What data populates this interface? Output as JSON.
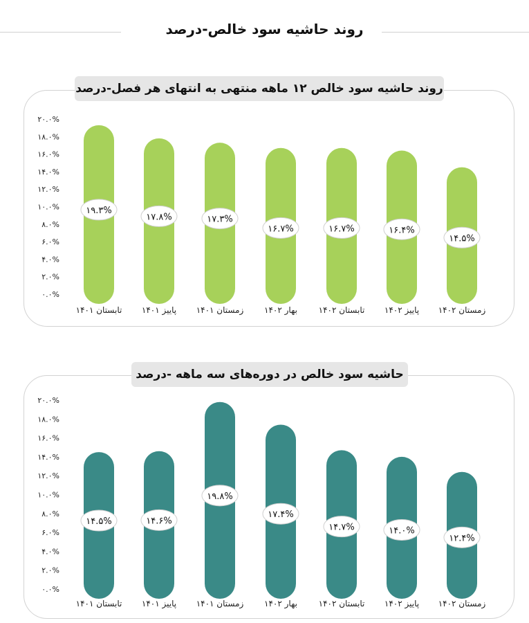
{
  "page": {
    "title": "روند حاشیه سود خالص-درصد"
  },
  "chart_data": [
    {
      "type": "bar",
      "title": "روند حاشیه سود خالص ۱۲ ماهه منتهی به انتهای هر فصل-درصد",
      "color": "#a7d15a",
      "categories": [
        "تابستان ۱۴۰۱",
        "پاییز ۱۴۰۱",
        "زمستان ۱۴۰۱",
        "بهار ۱۴۰۲",
        "تابستان ۱۴۰۲",
        "پاییز ۱۴۰۲",
        "زمستان ۱۴۰۲"
      ],
      "values": [
        19.3,
        17.8,
        17.3,
        16.7,
        16.7,
        16.4,
        14.5
      ],
      "labels": [
        "۱۹.۳%",
        "۱۷.۸%",
        "۱۷.۳%",
        "۱۶.۷%",
        "۱۶.۷%",
        "۱۶.۴%",
        "۱۴.۵%"
      ],
      "yticks": [
        "۰.۰%",
        "۲.۰%",
        "۴.۰%",
        "۶.۰%",
        "۸.۰%",
        "۱۰.۰%",
        "۱۲.۰%",
        "۱۴.۰%",
        "۱۶.۰%",
        "۱۸.۰%",
        "۲۰.۰%"
      ],
      "ylim": [
        0,
        20
      ],
      "grid": false,
      "legend": "none"
    },
    {
      "type": "bar",
      "title": "حاشیه سود خالص در دوره‌های سه ماهه -درصد",
      "color": "#3a8a87",
      "categories": [
        "تابستان ۱۴۰۱",
        "پاییز ۱۴۰۱",
        "زمستان ۱۴۰۱",
        "بهار ۱۴۰۲",
        "تابستان ۱۴۰۲",
        "پاییز ۱۴۰۲",
        "زمستان ۱۴۰۲"
      ],
      "values": [
        14.5,
        14.6,
        19.8,
        17.4,
        14.7,
        14.0,
        12.4
      ],
      "labels": [
        "۱۴.۵%",
        "۱۴.۶%",
        "۱۹.۸%",
        "۱۷.۴%",
        "۱۴.۷%",
        "۱۴.۰%",
        "۱۲.۴%"
      ],
      "yticks": [
        "۰.۰%",
        "۲.۰%",
        "۴.۰%",
        "۶.۰%",
        "۸.۰%",
        "۱۰.۰%",
        "۱۲.۰%",
        "۱۴.۰%",
        "۱۶.۰%",
        "۱۸.۰%",
        "۲۰.۰%"
      ],
      "ylim": [
        0,
        20
      ],
      "grid": false,
      "legend": "none"
    }
  ]
}
